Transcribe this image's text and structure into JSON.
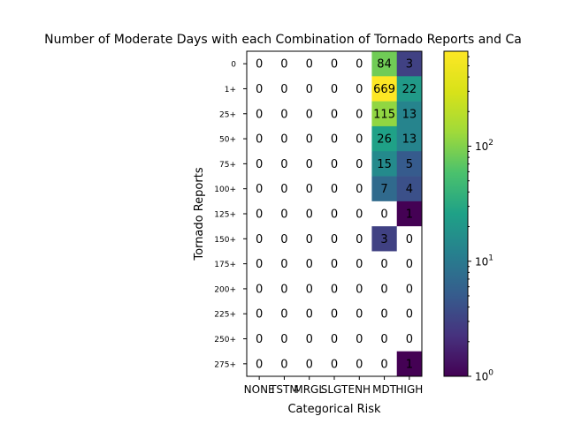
{
  "chart_data": {
    "type": "heatmap",
    "title": "Number of Moderate Days with each Combination of Tornado Reports and Ca",
    "xlabel": "Categorical Risk",
    "ylabel": "Tornado Reports",
    "x_categories": [
      "NONE",
      "TSTM",
      "MRGL",
      "SLGT",
      "ENH",
      "MDT",
      "HIGH"
    ],
    "y_categories": [
      "0",
      "1+",
      "25+",
      "50+",
      "75+",
      "100+",
      "125+",
      "150+",
      "175+",
      "200+",
      "225+",
      "250+",
      "275+"
    ],
    "values": [
      [
        0,
        0,
        0,
        0,
        0,
        84,
        3
      ],
      [
        0,
        0,
        0,
        0,
        0,
        669,
        22
      ],
      [
        0,
        0,
        0,
        0,
        0,
        115,
        13
      ],
      [
        0,
        0,
        0,
        0,
        0,
        26,
        13
      ],
      [
        0,
        0,
        0,
        0,
        0,
        15,
        5
      ],
      [
        0,
        0,
        0,
        0,
        0,
        7,
        4
      ],
      [
        0,
        0,
        0,
        0,
        0,
        0,
        1
      ],
      [
        0,
        0,
        0,
        0,
        0,
        3,
        0
      ],
      [
        0,
        0,
        0,
        0,
        0,
        0,
        0
      ],
      [
        0,
        0,
        0,
        0,
        0,
        0,
        0
      ],
      [
        0,
        0,
        0,
        0,
        0,
        0,
        0
      ],
      [
        0,
        0,
        0,
        0,
        0,
        0,
        0
      ],
      [
        0,
        0,
        0,
        0,
        0,
        0,
        1
      ]
    ],
    "color_scale": "log",
    "colormap": "viridis",
    "zero_cells_color": "#ffffff",
    "colorbar": {
      "range": [
        1,
        669
      ],
      "ticks": [
        {
          "value": 1,
          "base": "10",
          "exp": "0"
        },
        {
          "value": 10,
          "base": "10",
          "exp": "1"
        },
        {
          "value": 100,
          "base": "10",
          "exp": "2"
        }
      ]
    }
  }
}
